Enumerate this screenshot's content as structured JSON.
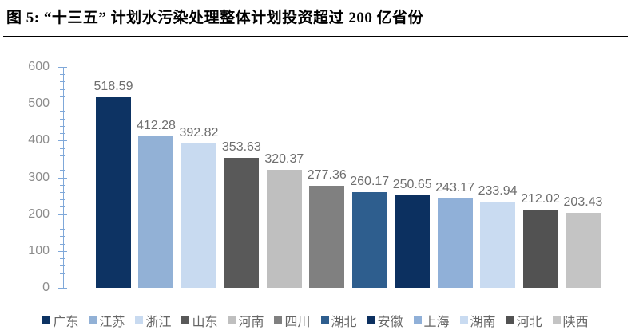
{
  "figure_title": "图 5: “十三五” 计划水污染处理整体计划投资超过 200 亿省份",
  "chart_data": {
    "type": "bar",
    "title": "图 5: “十三五” 计划水污染处理整体计划投资超过 200 亿省份",
    "categories": [
      "广东",
      "江苏",
      "浙江",
      "山东",
      "河南",
      "四川",
      "湖北",
      "安徽",
      "上海",
      "湖南",
      "河北",
      "陕西"
    ],
    "values": [
      518.59,
      412.28,
      392.82,
      353.63,
      320.37,
      277.36,
      260.17,
      250.65,
      243.17,
      233.94,
      212.02,
      203.43
    ],
    "data_labels": [
      "518.59",
      "412.28",
      "392.82",
      "353.63",
      "320.37",
      "277.36",
      "260.17",
      "250.65",
      "243.17",
      "233.94",
      "212.02",
      "203.43"
    ],
    "bar_colors": [
      "#0D3363",
      "#92B1D6",
      "#C8DAF0",
      "#595959",
      "#BFBFBF",
      "#808080",
      "#2E5E8E",
      "#0C3060",
      "#90B0D8",
      "#C9DBF1",
      "#525252",
      "#C4C4C4"
    ],
    "ylim": [
      0,
      600
    ],
    "y_major_step": 100,
    "y_minor_step": 20,
    "y_tick_labels": [
      "0",
      "100",
      "200",
      "300",
      "400",
      "500",
      "600"
    ],
    "xlabel": "",
    "ylabel": "",
    "grid": "off",
    "legend_position": "bottom",
    "colors": {
      "axis": "#7FA8D9",
      "tick_label": "#8C8C8C",
      "value_label": "#6E6E6E",
      "legend_text": "#666666",
      "title_text": "#000000",
      "rule": "#000000",
      "background": "#FFFFFF"
    }
  }
}
